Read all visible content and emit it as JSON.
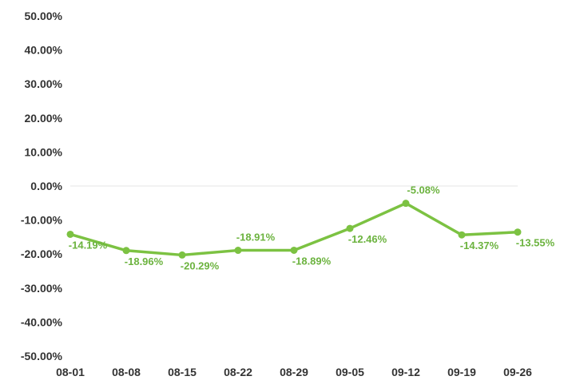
{
  "colors": {
    "series": "#7cc242",
    "label": "#6cb33f",
    "axis_text": "#333333",
    "zero_line": "#e6e6e6"
  },
  "chart_data": {
    "type": "line",
    "title": "",
    "xlabel": "",
    "ylabel": "",
    "categories": [
      "08-01",
      "08-08",
      "08-15",
      "08-22",
      "08-29",
      "09-05",
      "09-12",
      "09-19",
      "09-26"
    ],
    "series": [
      {
        "values": [
          -14.19,
          -18.96,
          -20.29,
          -18.91,
          -18.89,
          -12.46,
          -5.08,
          -14.37,
          -13.55
        ],
        "labels": [
          "-14.19%",
          "-18.96%",
          "-20.29%",
          "-18.91%",
          "-18.89%",
          "-12.46%",
          "-5.08%",
          "-14.37%",
          "-13.55%"
        ],
        "label_side": [
          "below",
          "below",
          "below",
          "above",
          "below",
          "below",
          "above",
          "below",
          "below"
        ]
      }
    ],
    "ylim": [
      -50,
      50
    ],
    "yticks": [
      50,
      40,
      30,
      20,
      10,
      0,
      -10,
      -20,
      -30,
      -40,
      -50
    ],
    "ytick_labels": [
      "50.00%",
      "40.00%",
      "30.00%",
      "20.00%",
      "10.00%",
      "0.00%",
      "-10.00%",
      "-20.00%",
      "-30.00%",
      "-40.00%",
      "-50.00%"
    ],
    "grid": "zero line only",
    "legend": "none"
  }
}
